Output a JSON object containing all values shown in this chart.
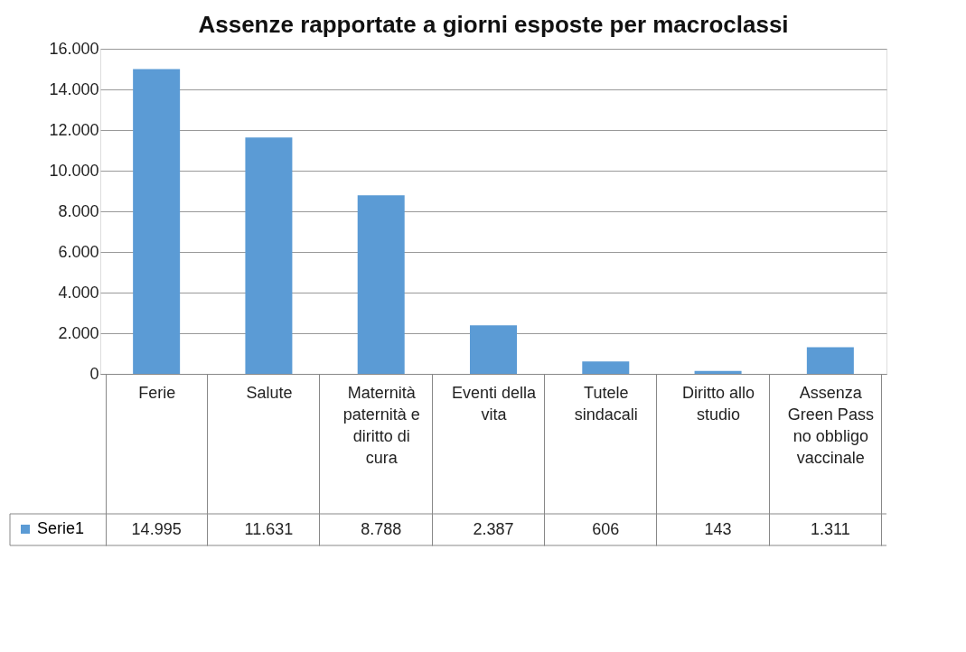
{
  "chart_data": {
    "type": "bar",
    "title": "Assenze rapportate a giorni esposte per macroclassi",
    "categories": [
      "Ferie",
      "Salute",
      "Maternità paternità e diritto di cura",
      "Eventi della vita",
      "Tutele sindacali",
      "Diritto allo studio",
      "Assenza Green Pass no obbligo vaccinale"
    ],
    "series": [
      {
        "name": "Serie1",
        "color": "#5b9bd5",
        "values": [
          14995,
          11631,
          8788,
          2387,
          606,
          143,
          1311
        ],
        "value_labels": [
          "14.995",
          "11.631",
          "8.788",
          "2.387",
          "606",
          "143",
          "1.311"
        ]
      }
    ],
    "ylim": [
      0,
      16000
    ],
    "yticks": [
      0,
      {
        "value": 2000,
        "label": "2.000"
      },
      {
        "value": 4000,
        "label": "4.000"
      },
      {
        "value": 6000,
        "label": "6.000"
      },
      {
        "value": 8000,
        "label": "8.000"
      },
      {
        "value": 10000,
        "label": "10.000"
      },
      {
        "value": 12000,
        "label": "12.000"
      },
      {
        "value": 14000,
        "label": "14.000"
      },
      {
        "value": 16000,
        "label": "16.000"
      }
    ],
    "grid": "y",
    "legend": "bottom left"
  }
}
